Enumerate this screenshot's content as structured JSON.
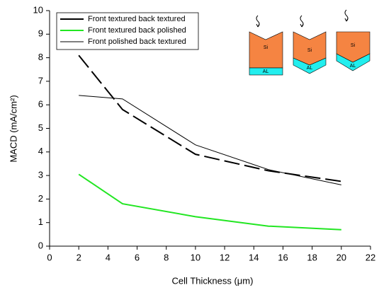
{
  "chart_data": {
    "type": "line",
    "x_label": "Cell Thickness (μm)",
    "y_label": "MACD (mA/cm²)",
    "x": [
      2,
      5,
      10,
      15,
      20
    ],
    "series": [
      {
        "name": "Front textured back textured",
        "color": "#000000",
        "line_width": 2,
        "dashed": true,
        "values": [
          8.1,
          5.8,
          3.9,
          3.2,
          2.75
        ]
      },
      {
        "name": "Front textured back polished",
        "color": "#22e622",
        "line_width": 2,
        "dashed": false,
        "values": [
          3.05,
          1.8,
          1.25,
          0.85,
          0.7
        ]
      },
      {
        "name": "Front polished back textured",
        "color": "#000000",
        "line_width": 1,
        "dashed": false,
        "values": [
          6.4,
          6.25,
          4.3,
          3.25,
          2.6
        ]
      }
    ],
    "xlim": [
      0,
      22
    ],
    "xticks": [
      0,
      2,
      4,
      6,
      8,
      10,
      12,
      14,
      16,
      18,
      20,
      22
    ],
    "ylim": [
      0,
      10
    ],
    "yticks": [
      0,
      1,
      2,
      3,
      4,
      5,
      6,
      7,
      8,
      9,
      10
    ],
    "grid": false,
    "legend": "top-left",
    "insets": [
      {
        "top": "Si",
        "bottom": "AL"
      },
      {
        "top": "Si",
        "bottom": "AL"
      },
      {
        "top": "Si",
        "bottom": "AL"
      }
    ]
  }
}
